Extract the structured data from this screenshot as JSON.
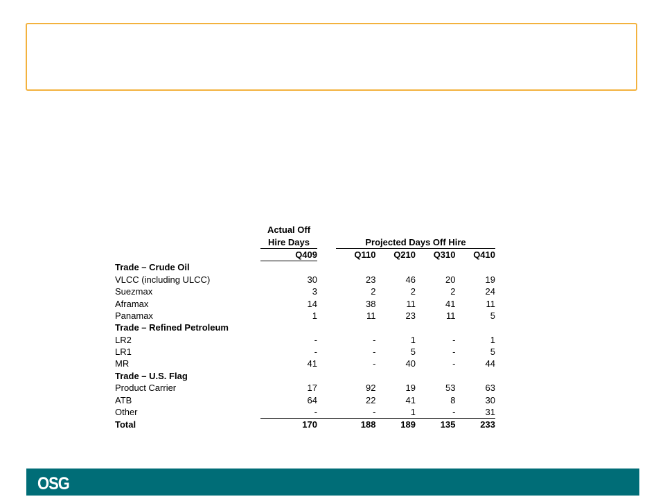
{
  "header": {
    "actual_line1": "Actual Off",
    "actual_line2": "Hire Days",
    "projected_label": "Projected Days Off Hire",
    "col_actual": "Q409",
    "col_q1": "Q110",
    "col_q2": "Q210",
    "col_q3": "Q310",
    "col_q4": "Q410"
  },
  "rows": [
    {
      "label": "Trade – Crude Oil",
      "section": true
    },
    {
      "label": "VLCC (including ULCC)",
      "q409": "30",
      "q110": "23",
      "q210": "46",
      "q310": "20",
      "q410": "19"
    },
    {
      "label": "Suezmax",
      "q409": "3",
      "q110": "2",
      "q210": "2",
      "q310": "2",
      "q410": "24"
    },
    {
      "label": "Aframax",
      "q409": "14",
      "q110": "38",
      "q210": "11",
      "q310": "41",
      "q410": "11"
    },
    {
      "label": "Panamax",
      "q409": "1",
      "q110": "11",
      "q210": "23",
      "q310": "11",
      "q410": "5"
    },
    {
      "label": "Trade – Refined Petroleum",
      "section": true
    },
    {
      "label": "LR2",
      "q409": "-",
      "q110": "-",
      "q210": "1",
      "q310": "-",
      "q410": "1"
    },
    {
      "label": "LR1",
      "q409": "-",
      "q110": "-",
      "q210": "5",
      "q310": "-",
      "q410": "5"
    },
    {
      "label": "MR",
      "q409": "41",
      "q110": "-",
      "q210": "40",
      "q310": "-",
      "q410": "44"
    },
    {
      "label": "Trade – U.S. Flag",
      "section": true
    },
    {
      "label": "Product Carrier",
      "q409": "17",
      "q110": "92",
      "q210": "19",
      "q310": "53",
      "q410": "63"
    },
    {
      "label": "ATB",
      "q409": "64",
      "q110": "22",
      "q210": "41",
      "q310": "8",
      "q410": "30"
    },
    {
      "label": "Other",
      "q409": "-",
      "q110": "-",
      "q210": "1",
      "q310": "-",
      "q410": "31"
    },
    {
      "label": "Total",
      "total": true,
      "q409": "170",
      "q110": "188",
      "q210": "189",
      "q310": "135",
      "q410": "233"
    }
  ],
  "footer": {
    "logo_text": "OSG",
    "bar_color": "#006d77"
  },
  "colors": {
    "title_border": "#f3b23e"
  }
}
